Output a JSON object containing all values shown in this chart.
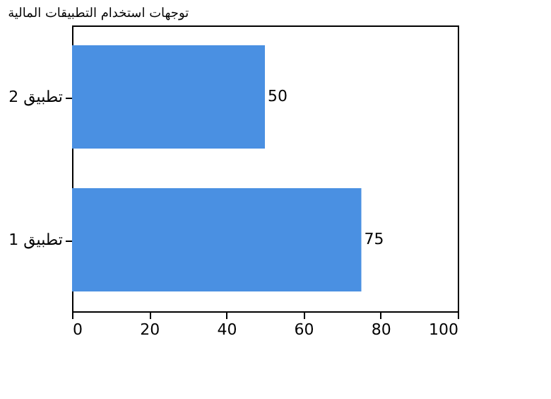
{
  "chart_data": {
    "type": "bar",
    "orientation": "horizontal",
    "title": "توجهات استخدام التطبيقات المالية",
    "categories": [
      "تطبيق 2",
      "تطبيق 1"
    ],
    "values": [
      50,
      75
    ],
    "color": "#4a90e2",
    "xlim": [
      0,
      100
    ],
    "xticks": [
      0,
      20,
      40,
      60,
      80,
      100
    ],
    "grid": false,
    "data_labels": true
  }
}
